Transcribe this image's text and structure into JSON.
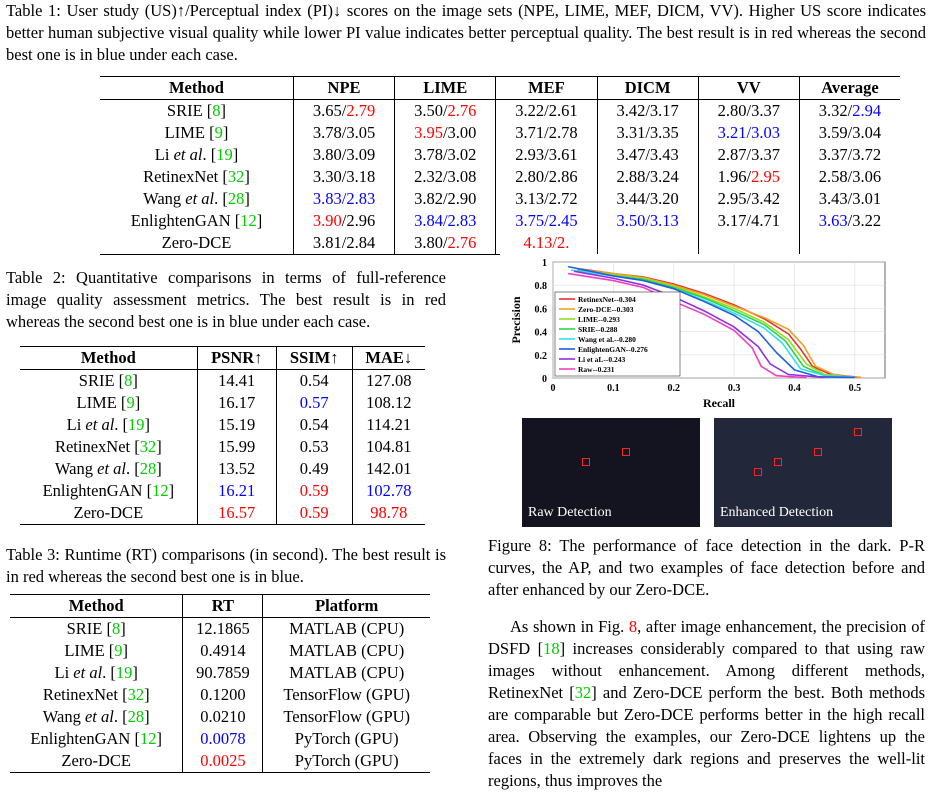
{
  "table1": {
    "caption": "Table 1: User study (US)↑/Perceptual index (PI)↓ scores on the image sets (NPE, LIME, MEF, DICM, VV). Higher US score indicates better human subjective visual quality while lower PI value indicates better perceptual quality. The best result is in red whereas the second best one is in blue under each case.",
    "headers": [
      "Method",
      "NPE",
      "LIME",
      "MEF",
      "DICM",
      "VV",
      "Average"
    ],
    "rows": [
      [
        {
          "t": "SRIE ["
        },
        {
          "t": "8",
          "c": "g"
        },
        {
          "t": "]"
        }
      ],
      [
        {
          "t": "LIME ["
        },
        {
          "t": "9",
          "c": "g"
        },
        {
          "t": "]"
        }
      ],
      [
        {
          "t": "Li "
        },
        {
          "t": "et al",
          "i": 1
        },
        {
          "t": ". ["
        },
        {
          "t": "19",
          "c": "g"
        },
        {
          "t": "]"
        }
      ],
      [
        {
          "t": "RetinexNet ["
        },
        {
          "t": "32",
          "c": "g"
        },
        {
          "t": "]"
        }
      ],
      [
        {
          "t": "Wang "
        },
        {
          "t": "et al",
          "i": 1
        },
        {
          "t": ". ["
        },
        {
          "t": "28",
          "c": "g"
        },
        {
          "t": "]"
        }
      ],
      [
        {
          "t": "EnlightenGAN ["
        },
        {
          "t": "12",
          "c": "g"
        },
        {
          "t": "]"
        }
      ],
      [
        {
          "t": "Zero-DCE"
        }
      ]
    ],
    "cells": [
      [
        [
          [
            "3.65/"
          ],
          [
            "2.79",
            "r"
          ]
        ],
        [
          [
            "3.50/"
          ],
          [
            "2.76",
            "r"
          ]
        ],
        [
          [
            "3.22/2.61"
          ]
        ],
        [
          [
            "3.42/3.17"
          ]
        ],
        [
          [
            "2.80/3.37"
          ]
        ],
        [
          [
            "3.32/"
          ],
          [
            "2.94",
            "b"
          ]
        ]
      ],
      [
        [
          [
            "3.78/3.05"
          ]
        ],
        [
          [
            "3.95",
            "r"
          ],
          [
            "/3.00"
          ]
        ],
        [
          [
            "3.71/2.78"
          ]
        ],
        [
          [
            "3.31/3.35"
          ]
        ],
        [
          [
            "3.21/3.03",
            "b"
          ]
        ],
        [
          [
            "3.59/3.04"
          ]
        ]
      ],
      [
        [
          [
            "3.80/3.09"
          ]
        ],
        [
          [
            "3.78/3.02"
          ]
        ],
        [
          [
            "2.93/3.61"
          ]
        ],
        [
          [
            "3.47/3.43"
          ]
        ],
        [
          [
            "2.87/3.37"
          ]
        ],
        [
          [
            "3.37/3.72"
          ]
        ]
      ],
      [
        [
          [
            "3.30/3.18"
          ]
        ],
        [
          [
            "2.32/3.08"
          ]
        ],
        [
          [
            "2.80/2.86"
          ]
        ],
        [
          [
            "2.88/3.24"
          ]
        ],
        [
          [
            "1.96/"
          ],
          [
            "2.95",
            "r"
          ]
        ],
        [
          [
            "2.58/3.06"
          ]
        ]
      ],
      [
        [
          [
            "3.83/2.83",
            "b"
          ]
        ],
        [
          [
            "3.82/2.90"
          ]
        ],
        [
          [
            "3.13/2.72"
          ]
        ],
        [
          [
            "3.44/3.20"
          ]
        ],
        [
          [
            "2.95/3.42"
          ]
        ],
        [
          [
            "3.43/3.01"
          ]
        ]
      ],
      [
        [
          [
            "3.90",
            "r"
          ],
          [
            "/2.96"
          ]
        ],
        [
          [
            "3.84/2.83",
            "b"
          ]
        ],
        [
          [
            "3.75/2.45",
            "b"
          ]
        ],
        [
          [
            "3.50/3.13",
            "b"
          ]
        ],
        [
          [
            "3.17/4.71"
          ]
        ],
        [
          [
            "3.63",
            "b"
          ],
          [
            "/3.22"
          ]
        ]
      ],
      [
        [
          [
            "3.81/2.84"
          ]
        ],
        [
          [
            "3.80/"
          ],
          [
            "2.76",
            "r"
          ]
        ],
        [
          [
            "4.13/2.",
            "r"
          ]
        ],
        [
          [
            ""
          ]
        ],
        [
          [
            ""
          ]
        ],
        [
          [
            ""
          ]
        ]
      ]
    ]
  },
  "table2": {
    "caption": "Table 2: Quantitative comparisons in terms of full-reference image quality assessment metrics. The best result is in red whereas the second best one is in blue under each case.",
    "headers": [
      "Method",
      "PSNR↑",
      "SSIM↑",
      "MAE↓"
    ],
    "cells": [
      [
        [
          "14.41"
        ],
        [
          "0.54"
        ],
        [
          "127.08"
        ]
      ],
      [
        [
          "16.17"
        ],
        [
          "0.57",
          "b"
        ],
        [
          "108.12"
        ]
      ],
      [
        [
          "15.19"
        ],
        [
          "0.54"
        ],
        [
          "114.21"
        ]
      ],
      [
        [
          "15.99"
        ],
        [
          "0.53"
        ],
        [
          "104.81"
        ]
      ],
      [
        [
          "13.52"
        ],
        [
          "0.49"
        ],
        [
          "142.01"
        ]
      ],
      [
        [
          "16.21",
          "b"
        ],
        [
          "0.59",
          "r"
        ],
        [
          "102.78",
          "b"
        ]
      ],
      [
        [
          "16.57",
          "r"
        ],
        [
          "0.59",
          "r"
        ],
        [
          "98.78",
          "r"
        ]
      ]
    ]
  },
  "table3": {
    "caption": "Table 3: Runtime (RT) comparisons (in second). The best result is in red whereas the second best one is in blue.",
    "headers": [
      "Method",
      "RT",
      "Platform"
    ],
    "cells": [
      [
        [
          "12.1865"
        ],
        [
          "MATLAB (CPU)"
        ]
      ],
      [
        [
          "0.4914"
        ],
        [
          "MATLAB (CPU)"
        ]
      ],
      [
        [
          "90.7859"
        ],
        [
          "MATLAB (CPU)"
        ]
      ],
      [
        [
          "0.1200"
        ],
        [
          "TensorFlow (GPU)"
        ]
      ],
      [
        [
          "0.0210"
        ],
        [
          "TensorFlow (GPU)"
        ]
      ],
      [
        [
          "0.0078",
          "b"
        ],
        [
          "PyTorch (GPU)"
        ]
      ],
      [
        [
          "0.0025",
          "r"
        ],
        [
          "PyTorch (GPU)"
        ]
      ]
    ]
  },
  "colors": {
    "r": "#ff0000",
    "b": "#0000ff",
    "g": "#00cc00"
  },
  "figure8": {
    "raw_label": "Raw Detection",
    "enhanced_label": "Enhanced Detection",
    "caption": "Figure 8: The performance of face detection in the dark. P-R curves, the AP, and two examples of face detection before and after enhanced by our Zero-DCE."
  },
  "body_text": [
    {
      "t": "As shown in Fig. "
    },
    {
      "t": "8",
      "c": "r"
    },
    {
      "t": ", after image enhancement, the precision of DSFD ["
    },
    {
      "t": "18",
      "c": "g"
    },
    {
      "t": "] increases considerably compared to that using raw images without enhancement. Among different methods, RetinexNet ["
    },
    {
      "t": "32",
      "c": "g"
    },
    {
      "t": "] and Zero-DCE perform the best. Both methods are comparable but Zero-DCE performs better in the high recall area. Observing the examples, our Zero-DCE lightens up the faces in the extremely dark regions and preserves the well-lit regions, thus improves the"
    }
  ],
  "chart_data": {
    "type": "line",
    "xlabel": "Recall",
    "ylabel": "Precision",
    "xlim": [
      0,
      0.55
    ],
    "ylim": [
      0,
      1
    ],
    "xticks": [
      "0",
      "0.1",
      "0.2",
      "0.3",
      "0.4",
      "0.5"
    ],
    "yticks": [
      "0",
      "0.2",
      "0.4",
      "0.6",
      "0.8",
      "1"
    ],
    "legend_position": "bottom-left",
    "grid": true,
    "series": [
      {
        "name": "RetinexNet--0.304",
        "color": "#e83030",
        "points": [
          [
            0.045,
            0.94
          ],
          [
            0.1,
            0.9
          ],
          [
            0.15,
            0.87
          ],
          [
            0.2,
            0.81
          ],
          [
            0.25,
            0.73
          ],
          [
            0.3,
            0.63
          ],
          [
            0.35,
            0.51
          ],
          [
            0.39,
            0.38
          ],
          [
            0.41,
            0.25
          ],
          [
            0.43,
            0.1
          ],
          [
            0.46,
            0.03
          ],
          [
            0.51,
            0.005
          ]
        ]
      },
      {
        "name": "Zero-DCE--0.303",
        "color": "#f0a020",
        "points": [
          [
            0.045,
            0.935
          ],
          [
            0.1,
            0.9
          ],
          [
            0.15,
            0.865
          ],
          [
            0.2,
            0.8
          ],
          [
            0.25,
            0.72
          ],
          [
            0.3,
            0.62
          ],
          [
            0.35,
            0.52
          ],
          [
            0.39,
            0.42
          ],
          [
            0.415,
            0.28
          ],
          [
            0.435,
            0.1
          ],
          [
            0.47,
            0.02
          ],
          [
            0.51,
            0.005
          ]
        ]
      },
      {
        "name": "LIME--0.293",
        "color": "#90e020",
        "points": [
          [
            0.04,
            0.93
          ],
          [
            0.1,
            0.89
          ],
          [
            0.15,
            0.86
          ],
          [
            0.2,
            0.79
          ],
          [
            0.25,
            0.7
          ],
          [
            0.3,
            0.6
          ],
          [
            0.35,
            0.48
          ],
          [
            0.39,
            0.33
          ],
          [
            0.42,
            0.12
          ],
          [
            0.45,
            0.03
          ],
          [
            0.5,
            0.005
          ]
        ]
      },
      {
        "name": "SRIE--0.288",
        "color": "#30d050",
        "points": [
          [
            0.04,
            0.93
          ],
          [
            0.1,
            0.88
          ],
          [
            0.15,
            0.85
          ],
          [
            0.2,
            0.78
          ],
          [
            0.25,
            0.69
          ],
          [
            0.3,
            0.58
          ],
          [
            0.35,
            0.46
          ],
          [
            0.385,
            0.32
          ],
          [
            0.415,
            0.1
          ],
          [
            0.45,
            0.02
          ],
          [
            0.5,
            0.005
          ]
        ]
      },
      {
        "name": "Wang et al.--0.280",
        "color": "#30e0f0",
        "points": [
          [
            0.03,
            0.93
          ],
          [
            0.1,
            0.88
          ],
          [
            0.15,
            0.84
          ],
          [
            0.2,
            0.77
          ],
          [
            0.25,
            0.67
          ],
          [
            0.3,
            0.56
          ],
          [
            0.35,
            0.43
          ],
          [
            0.38,
            0.3
          ],
          [
            0.41,
            0.08
          ],
          [
            0.45,
            0.02
          ],
          [
            0.5,
            0.005
          ]
        ]
      },
      {
        "name": "EnlightenGAN--0.276",
        "color": "#2060e0",
        "points": [
          [
            0.025,
            0.96
          ],
          [
            0.1,
            0.88
          ],
          [
            0.15,
            0.84
          ],
          [
            0.2,
            0.77
          ],
          [
            0.25,
            0.66
          ],
          [
            0.3,
            0.54
          ],
          [
            0.34,
            0.4
          ],
          [
            0.37,
            0.22
          ],
          [
            0.4,
            0.07
          ],
          [
            0.44,
            0.01
          ],
          [
            0.5,
            0.005
          ]
        ]
      },
      {
        "name": "Li et aL--0.243",
        "color": "#9030e0",
        "points": [
          [
            0.035,
            0.92
          ],
          [
            0.1,
            0.86
          ],
          [
            0.15,
            0.8
          ],
          [
            0.2,
            0.7
          ],
          [
            0.25,
            0.58
          ],
          [
            0.3,
            0.44
          ],
          [
            0.34,
            0.27
          ],
          [
            0.36,
            0.12
          ],
          [
            0.39,
            0.03
          ],
          [
            0.45,
            0.005
          ]
        ]
      },
      {
        "name": "Raw--0.231",
        "color": "#f040c0",
        "points": [
          [
            0.025,
            0.9
          ],
          [
            0.1,
            0.84
          ],
          [
            0.15,
            0.78
          ],
          [
            0.2,
            0.66
          ],
          [
            0.25,
            0.55
          ],
          [
            0.3,
            0.41
          ],
          [
            0.33,
            0.26
          ],
          [
            0.345,
            0.1
          ],
          [
            0.37,
            0.02
          ],
          [
            0.42,
            0.003
          ]
        ]
      }
    ]
  }
}
